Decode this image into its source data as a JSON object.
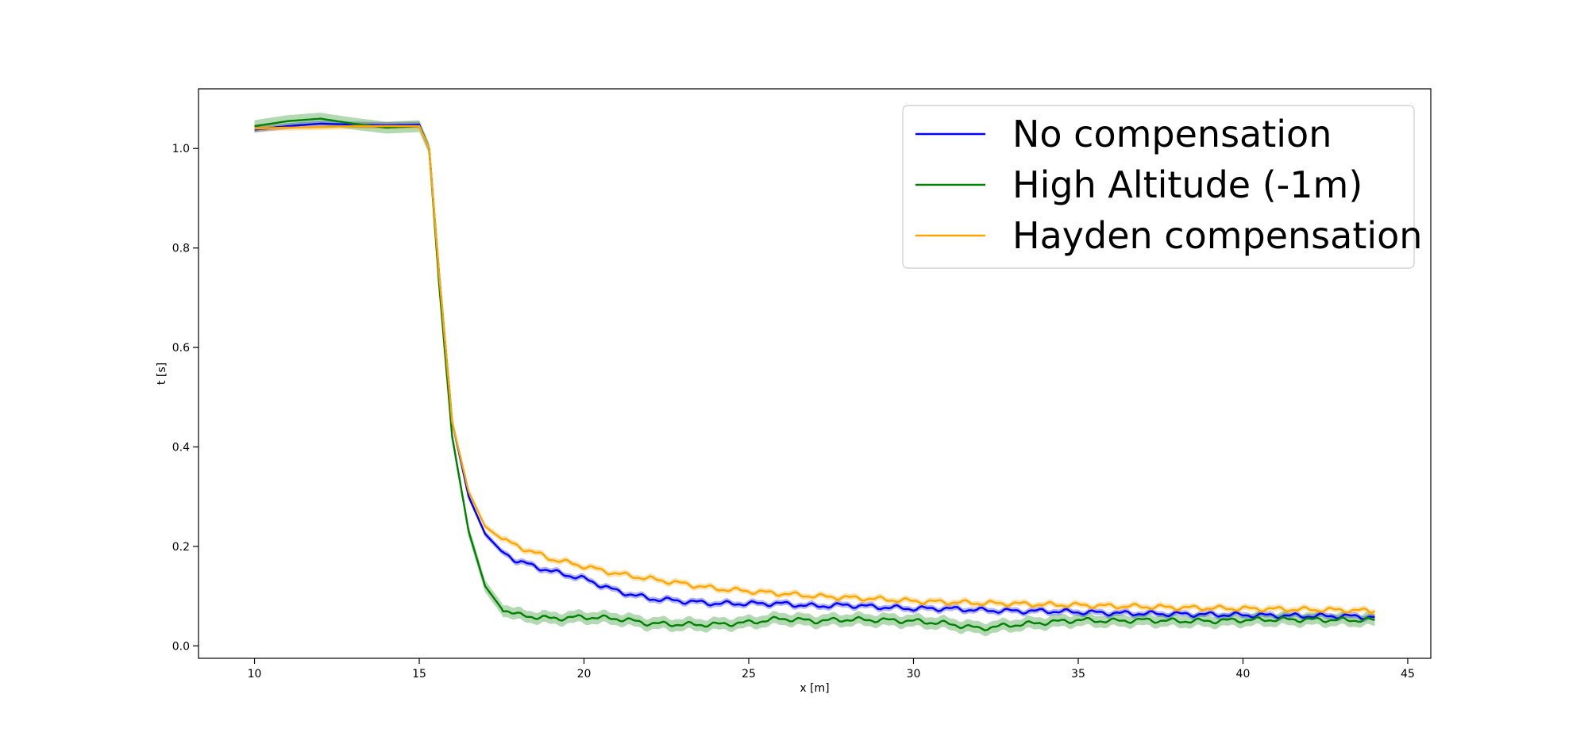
{
  "chart_data": {
    "type": "line",
    "title": "",
    "xlabel": "x [m]",
    "ylabel": "t [s]",
    "xlim": [
      8.3,
      45.7
    ],
    "ylim": [
      -0.025,
      1.12
    ],
    "xticks": [
      10,
      15,
      20,
      25,
      30,
      35,
      40,
      45
    ],
    "yticks": [
      0.0,
      0.2,
      0.4,
      0.6,
      0.8,
      1.0
    ],
    "grid": false,
    "legend_position": "top-right",
    "shaded_bands": true,
    "series": [
      {
        "name": "No compensation",
        "color": "#0000ff",
        "band_halfwidth": 0.006,
        "x": [
          10,
          11,
          12,
          13,
          14,
          15,
          15.3,
          15.6,
          16.0,
          16.5,
          17.0,
          17.5,
          18,
          19,
          20,
          21,
          22,
          23,
          24,
          25,
          26,
          27,
          28,
          29,
          30,
          31,
          32,
          33,
          34,
          35,
          36,
          37,
          38,
          39,
          40,
          41,
          42,
          43,
          44
        ],
        "y": [
          1.038,
          1.045,
          1.05,
          1.048,
          1.047,
          1.048,
          1.0,
          0.75,
          0.45,
          0.3,
          0.225,
          0.19,
          0.17,
          0.15,
          0.135,
          0.11,
          0.095,
          0.09,
          0.085,
          0.085,
          0.085,
          0.08,
          0.082,
          0.078,
          0.075,
          0.075,
          0.072,
          0.07,
          0.07,
          0.068,
          0.066,
          0.065,
          0.064,
          0.063,
          0.062,
          0.061,
          0.06,
          0.06,
          0.058
        ]
      },
      {
        "name": "High Altitude (-1m)",
        "color": "#008000",
        "band_halfwidth": 0.012,
        "x": [
          10,
          11,
          12,
          13,
          14,
          15,
          15.3,
          15.6,
          16.0,
          16.5,
          17.0,
          17.5,
          18,
          19,
          20,
          21,
          22,
          23,
          24,
          25,
          26,
          27,
          28,
          29,
          30,
          31,
          32,
          33,
          34,
          35,
          36,
          37,
          38,
          39,
          40,
          41,
          42,
          43,
          44
        ],
        "y": [
          1.045,
          1.055,
          1.06,
          1.05,
          1.042,
          1.045,
          1.0,
          0.73,
          0.42,
          0.23,
          0.12,
          0.075,
          0.062,
          0.055,
          0.058,
          0.055,
          0.045,
          0.043,
          0.043,
          0.047,
          0.055,
          0.05,
          0.053,
          0.052,
          0.05,
          0.045,
          0.035,
          0.042,
          0.047,
          0.052,
          0.05,
          0.052,
          0.05,
          0.05,
          0.052,
          0.053,
          0.053,
          0.052,
          0.052
        ]
      },
      {
        "name": "Hayden compensation",
        "color": "#ffa500",
        "band_halfwidth": 0.006,
        "x": [
          10,
          11,
          12,
          13,
          14,
          15,
          15.3,
          15.6,
          16.0,
          16.5,
          17.0,
          17.5,
          18,
          19,
          20,
          21,
          22,
          23,
          24,
          25,
          26,
          27,
          28,
          29,
          30,
          31,
          32,
          33,
          34,
          35,
          36,
          37,
          38,
          39,
          40,
          41,
          42,
          43,
          44
        ],
        "y": [
          1.04,
          1.042,
          1.043,
          1.045,
          1.045,
          1.045,
          1.0,
          0.75,
          0.45,
          0.31,
          0.24,
          0.215,
          0.2,
          0.175,
          0.16,
          0.145,
          0.135,
          0.125,
          0.115,
          0.11,
          0.105,
          0.1,
          0.097,
          0.094,
          0.09,
          0.088,
          0.086,
          0.085,
          0.083,
          0.082,
          0.08,
          0.079,
          0.077,
          0.076,
          0.075,
          0.074,
          0.073,
          0.072,
          0.07
        ]
      }
    ]
  }
}
